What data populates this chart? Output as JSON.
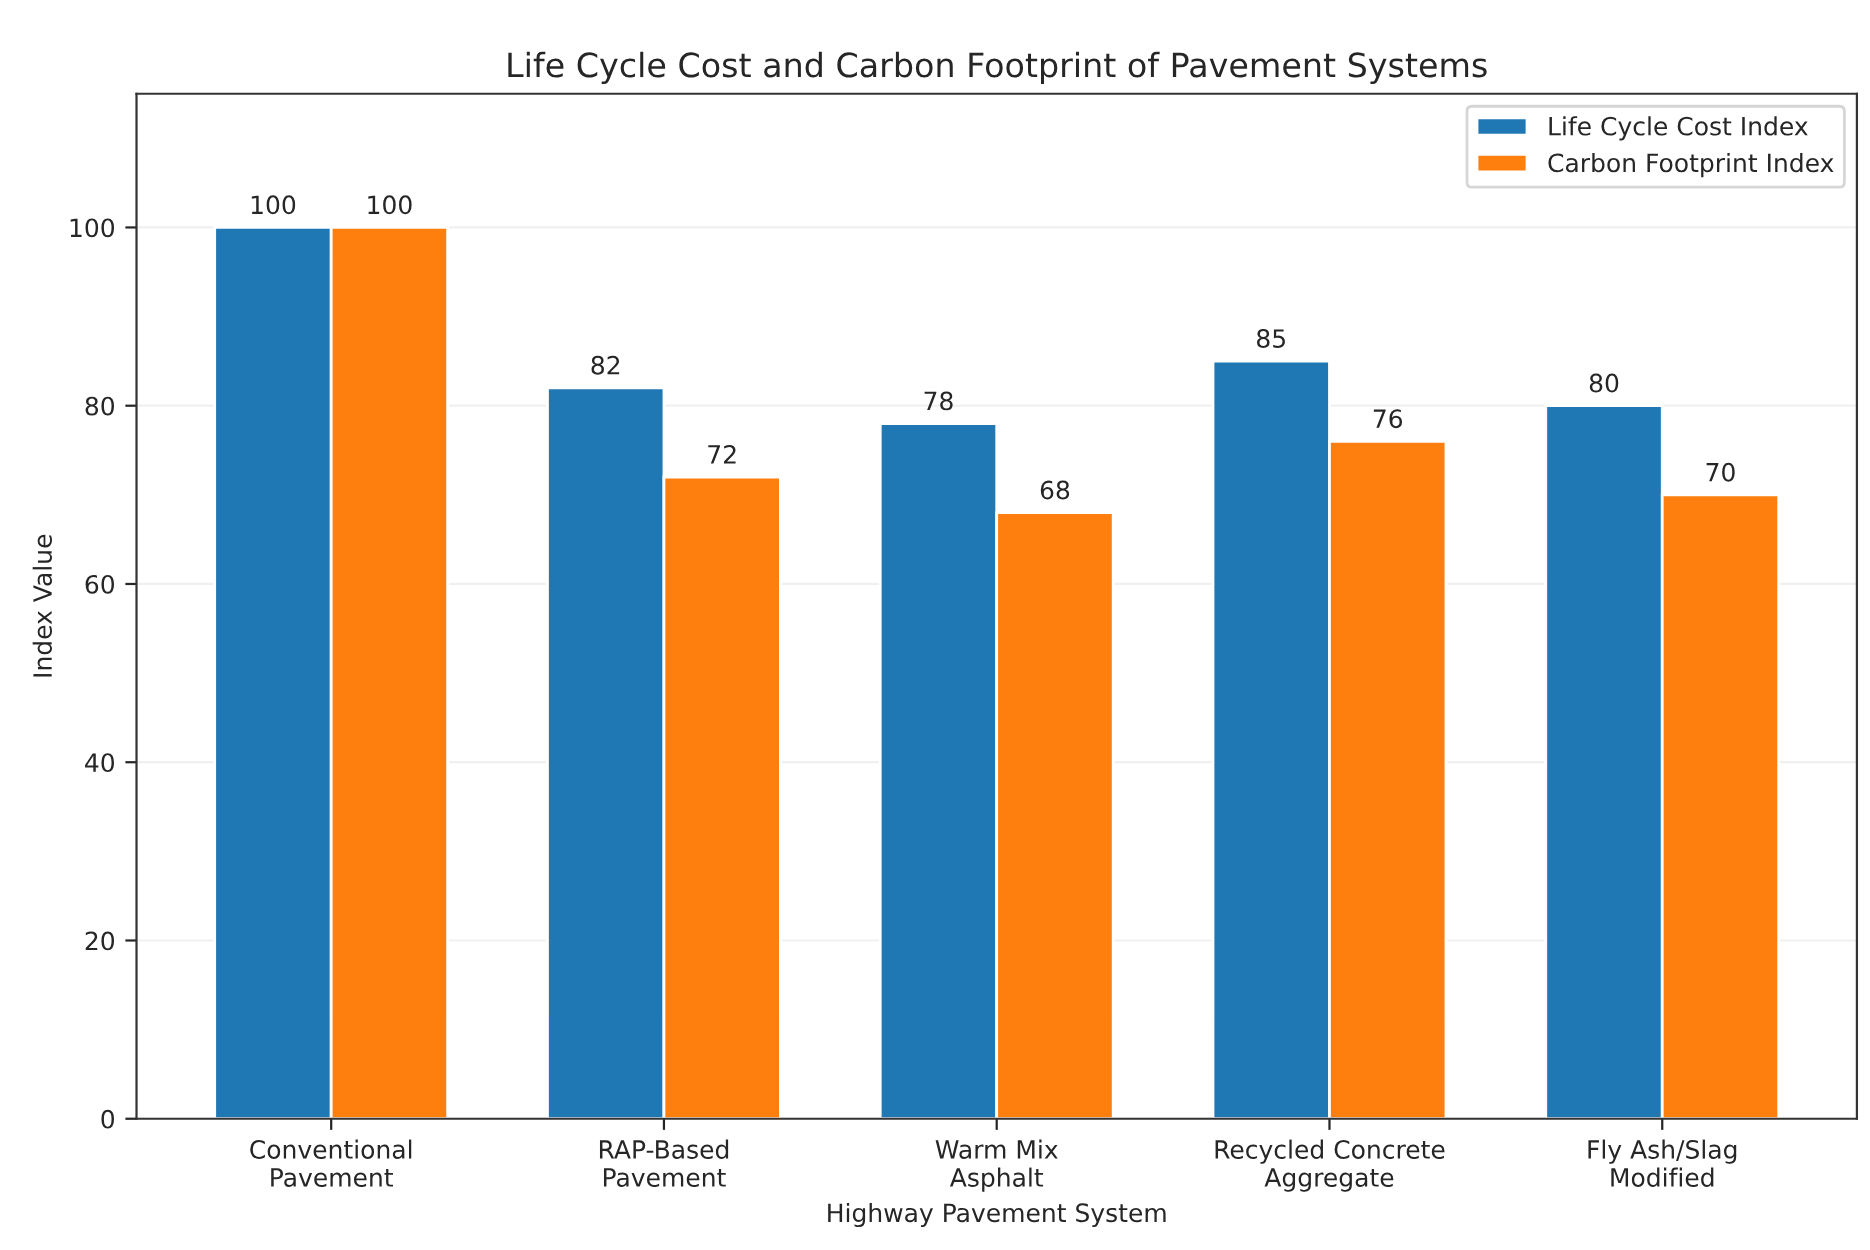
{
  "chart_data": {
    "type": "bar",
    "title": "Life Cycle Cost and Carbon Footprint of Pavement Systems",
    "xlabel": "Highway Pavement System",
    "ylabel": "Index Value",
    "categories": [
      "Conventional\nPavement",
      "RAP-Based\nPavement",
      "Warm Mix\nAsphalt",
      "Recycled Concrete\nAggregate",
      "Fly Ash/Slag\nModified"
    ],
    "series": [
      {
        "name": "Life Cycle Cost Index",
        "color": "#1f77b4",
        "values": [
          100,
          82,
          78,
          85,
          80
        ]
      },
      {
        "name": "Carbon Footprint Index",
        "color": "#ff7f0e",
        "values": [
          100,
          72,
          68,
          76,
          70
        ]
      }
    ],
    "ylim": [
      0,
      115
    ],
    "yticks": [
      0,
      20,
      40,
      60,
      80,
      100
    ],
    "grid": "y",
    "legend": "top right",
    "data_labels": true
  }
}
